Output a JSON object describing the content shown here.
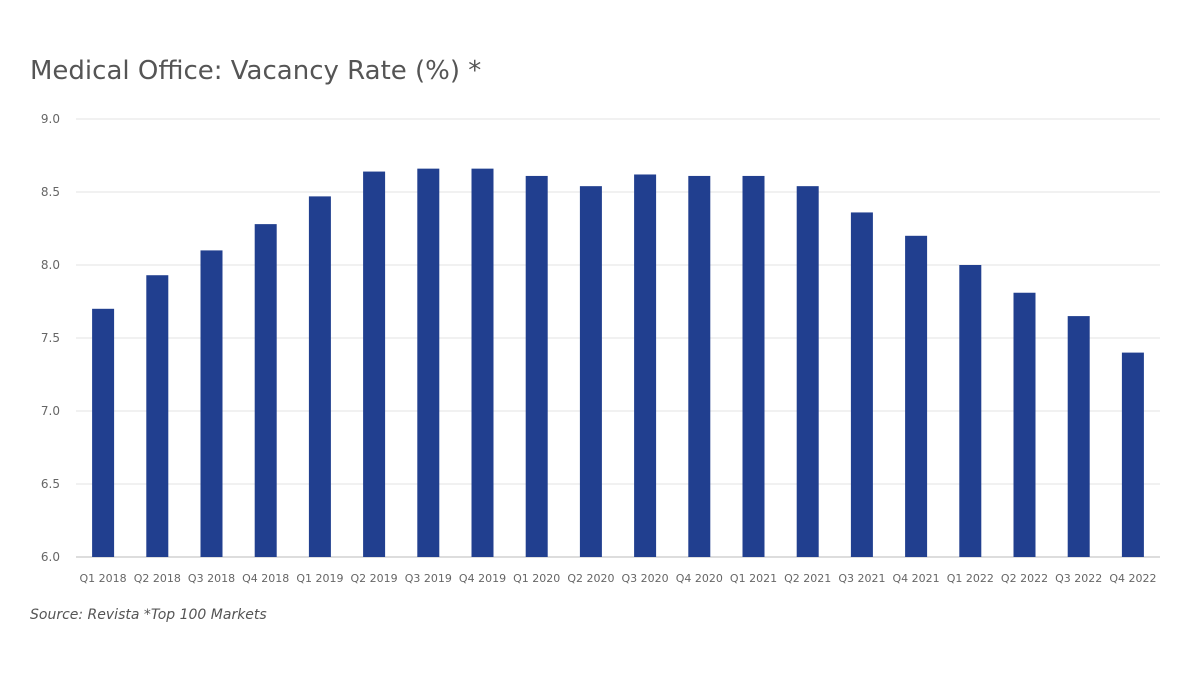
{
  "chart_data": {
    "type": "bar",
    "title": "Medical Office: Vacancy Rate (%) *",
    "source": "Source: Revista *Top 100 Markets",
    "xlabel": "",
    "ylabel": "",
    "ylim": [
      6.0,
      9.0
    ],
    "yticks": [
      "6.0",
      "6.5",
      "7.0",
      "7.5",
      "8.0",
      "8.5",
      "9.0"
    ],
    "grid": true,
    "bar_color": "#213f8f",
    "categories": [
      "Q1 2018",
      "Q2 2018",
      "Q3 2018",
      "Q4 2018",
      "Q1 2019",
      "Q2 2019",
      "Q3 2019",
      "Q4 2019",
      "Q1 2020",
      "Q2 2020",
      "Q3 2020",
      "Q4 2020",
      "Q1 2021",
      "Q2 2021",
      "Q3 2021",
      "Q4 2021",
      "Q1 2022",
      "Q2 2022",
      "Q3 2022",
      "Q4 2022"
    ],
    "values": [
      7.7,
      7.93,
      8.1,
      8.28,
      8.47,
      8.64,
      8.66,
      8.66,
      8.61,
      8.54,
      8.62,
      8.61,
      8.61,
      8.54,
      8.36,
      8.2,
      8.0,
      7.81,
      7.65,
      7.4
    ]
  }
}
